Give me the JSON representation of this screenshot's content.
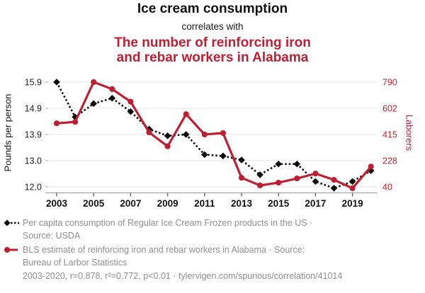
{
  "header": {
    "title": "Ice cream consumption",
    "connector": "correlates with",
    "subtitle": "The number of reinforcing iron and rebar workers in Alabama",
    "subtitle_lines": [
      "The number of reinforcing iron",
      "and rebar workers in Alabama"
    ]
  },
  "colors": {
    "accent_red": "#be2033",
    "series_black": "#0d0d0d",
    "gridline": "#ebebeb",
    "axis_line": "#a6a6a6",
    "tick_mark": "#666666",
    "y_tick_text": "#222222",
    "x_tick_text": "#111111",
    "legend_gray": "#8f8f8f"
  },
  "chart_data": {
    "type": "line",
    "x": [
      2003,
      2004,
      2005,
      2006,
      2007,
      2008,
      2009,
      2010,
      2011,
      2012,
      2013,
      2014,
      2015,
      2016,
      2017,
      2018,
      2019,
      2020
    ],
    "x_tick_labels": [
      "2003",
      "2005",
      "2007",
      "2009",
      "2011",
      "2013",
      "2015",
      "2017",
      "2019"
    ],
    "series": [
      {
        "name": "Per capita consumption of Regular Ice Cream Frozen products in the US",
        "axis": "left",
        "style": "dashed",
        "marker": "diamond",
        "color": "#0d0d0d",
        "values": [
          15.9,
          14.6,
          15.1,
          15.3,
          14.8,
          14.15,
          13.9,
          13.95,
          13.2,
          13.15,
          13.0,
          12.45,
          12.85,
          12.85,
          12.2,
          11.95,
          12.2,
          12.6
        ]
      },
      {
        "name": "BLS estimate of reinforcing iron and rebar workers in Alabama",
        "axis": "right",
        "style": "solid",
        "marker": "circle",
        "color": "#be2033",
        "values": [
          495,
          505,
          790,
          740,
          650,
          430,
          330,
          560,
          415,
          425,
          105,
          50,
          70,
          100,
          135,
          90,
          30,
          185
        ]
      }
    ],
    "left_axis": {
      "label": "Pounds per person",
      "tick_labels": [
        "15.9",
        "14.9",
        "13.9",
        "13.0",
        "12.0"
      ],
      "range": [
        12.0,
        15.9
      ]
    },
    "right_axis": {
      "label": "Laborers",
      "tick_labels": [
        "790",
        "602",
        "415",
        "228",
        "40"
      ],
      "range": [
        40,
        790
      ]
    },
    "grid": true,
    "legend_position": "bottom"
  },
  "legend": [
    {
      "label": "Per capita consumption of Regular Ice Cream Frozen products in the US · Source: USDA",
      "lines": [
        "Per capita consumption of Regular Ice Cream Frozen products in the US ·",
        "Source: USDA"
      ]
    },
    {
      "label": "BLS estimate of reinforcing iron and rebar workers in Alabama · Source: Bureau of Larbor Statistics",
      "lines": [
        "BLS estimate of reinforcing iron and rebar workers in Alabama · Source:",
        "Bureau of Larbor Statistics"
      ]
    }
  ],
  "footer": "2003-2020, r=0.878, r²=0.772, p<0.01 · tylervigen.com/spurious/correlation/41014"
}
